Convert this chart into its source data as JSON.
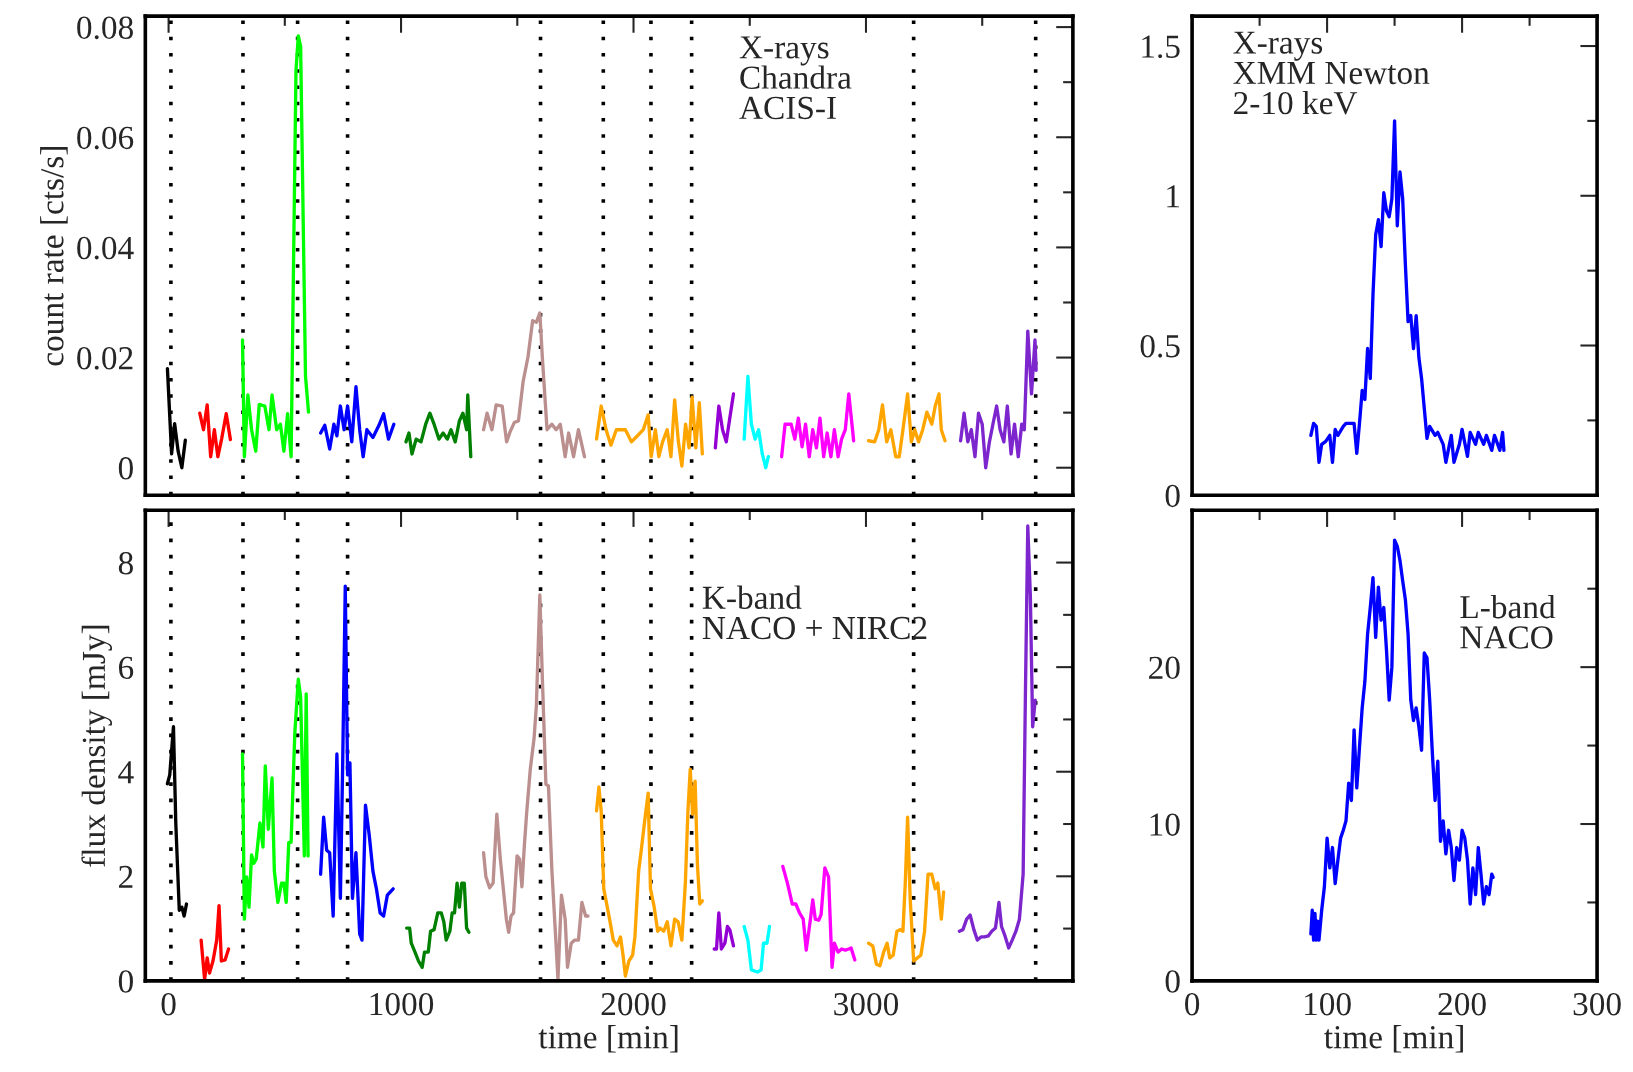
{
  "chart_data": [
    {
      "type": "line",
      "ylabel": "count rate [cts/s]",
      "xlim": [
        -100,
        3890
      ],
      "ylim": [
        -0.005,
        0.082
      ],
      "tick_labels": "y",
      "xticks": [
        0,
        {
          "value": 500,
          "label": null
        },
        1000,
        {
          "value": 1500,
          "label": null
        },
        2000,
        {
          "value": 2500,
          "label": null
        },
        3000,
        {
          "value": 3500,
          "label": null
        }
      ],
      "yticks": [
        0,
        {
          "value": 0.01,
          "label": null
        },
        0.02,
        {
          "value": 0.03,
          "label": null
        },
        0.04,
        {
          "value": 0.05,
          "label": null
        },
        0.06,
        {
          "value": 0.07,
          "label": null
        },
        0.08
      ],
      "annotations": [
        "X-rays\nChandra\nACIS-I"
      ],
      "ref_lines": [
        {
          "axis": "x",
          "value": 10,
          "color": "#000000",
          "line_style": "dotted"
        },
        {
          "axis": "x",
          "value": 320,
          "color": "#000000",
          "line_style": "dotted"
        },
        {
          "axis": "x",
          "value": 555,
          "color": "#000000",
          "line_style": "dotted"
        },
        {
          "axis": "x",
          "value": 770,
          "color": "#000000",
          "line_style": "dotted"
        },
        {
          "axis": "x",
          "value": 1600,
          "color": "#000000",
          "line_style": "dotted"
        },
        {
          "axis": "x",
          "value": 1870,
          "color": "#000000",
          "line_style": "dotted"
        },
        {
          "axis": "x",
          "value": 2075,
          "color": "#000000",
          "line_style": "dotted"
        },
        {
          "axis": "x",
          "value": 2250,
          "color": "#000000",
          "line_style": "dotted"
        },
        {
          "axis": "x",
          "value": 3205,
          "color": "#000000",
          "line_style": "dotted"
        },
        {
          "axis": "x",
          "value": 3730,
          "color": "#000000",
          "line_style": "dotted"
        }
      ],
      "series": [
        {
          "color": "#000000",
          "x": [
            -5,
            13,
            26,
            41,
            57,
            72
          ],
          "values": [
            0.018,
            0.0025,
            0.008,
            0.003,
            0,
            0.005
          ]
        },
        {
          "color": "#ff0000",
          "x": [
            134,
            150,
            166,
            181,
            197,
            212,
            228,
            248,
            266
          ],
          "values": [
            0.0099,
            0.0069,
            0.0114,
            0.002,
            0.0069,
            0.002,
            0.0052,
            0.0098,
            0.0051
          ]
        },
        {
          "color": "#00ff00",
          "x": [
            318,
            326,
            341,
            357,
            375,
            390,
            414,
            432,
            445,
            465,
            481,
            496,
            512,
            527,
            548,
            558,
            568,
            589,
            602
          ],
          "values": [
            0.0232,
            0.002,
            0.0132,
            0.0069,
            0.003,
            0.0115,
            0.0112,
            0.0069,
            0.0132,
            0.0069,
            0.0079,
            0.003,
            0.0098,
            0.002,
            0.0721,
            0.0784,
            0.0765,
            0.0166,
            0.0101
          ]
        },
        {
          "color": "#0000ff",
          "x": [
            654,
            672,
            693,
            711,
            724,
            739,
            755,
            770,
            788,
            806,
            822,
            837,
            853,
            879,
            905,
            925,
            946,
            969
          ],
          "values": [
            0.0063,
            0.0077,
            0.0034,
            0.0079,
            0.0058,
            0.0112,
            0.0069,
            0.0112,
            0.0047,
            0.0147,
            0.0069,
            0.002,
            0.0069,
            0.0055,
            0.0077,
            0.0098,
            0.0052,
            0.0079
          ]
        },
        {
          "color": "#008000",
          "x": [
            1021,
            1034,
            1047,
            1065,
            1086,
            1106,
            1124,
            1142,
            1163,
            1181,
            1199,
            1215,
            1233,
            1251,
            1266,
            1282,
            1287,
            1300
          ],
          "values": [
            0.0047,
            0.0063,
            0.0025,
            0.0052,
            0.0047,
            0.0079,
            0.0099,
            0.0079,
            0.0052,
            0.0063,
            0.0052,
            0.0069,
            0.0047,
            0.0085,
            0.0099,
            0.0069,
            0.0132,
            0.002
          ]
        },
        {
          "color": "#bc8f8f",
          "x": [
            1355,
            1370,
            1391,
            1409,
            1435,
            1454,
            1469,
            1487,
            1505,
            1525,
            1546,
            1566,
            1582,
            1597,
            1608,
            1628,
            1649,
            1667,
            1685,
            1706,
            1721,
            1742,
            1763,
            1789
          ],
          "values": [
            0.0069,
            0.0099,
            0.0069,
            0.0114,
            0.0112,
            0.0047,
            0.0065,
            0.0082,
            0.0085,
            0.0156,
            0.0201,
            0.0267,
            0.0264,
            0.0281,
            0.0199,
            0.0069,
            0.0079,
            0.0069,
            0.0079,
            0.002,
            0.0063,
            0.002,
            0.0069,
            0.002
          ]
        },
        {
          "color": "#ffa500",
          "x": [
            1841,
            1861,
            1882,
            1903,
            1926,
            1965,
            1991,
            2017,
            2042,
            2063,
            2076,
            2094,
            2109,
            2125,
            2145,
            2161,
            2177,
            2193,
            2208,
            2224,
            2239,
            2252,
            2268,
            2283,
            2296
          ],
          "values": [
            0.0052,
            0.0112,
            0.0069,
            0.0041,
            0.0069,
            0.0069,
            0.0047,
            0.0058,
            0.0069,
            0.0096,
            0.002,
            0.0069,
            0.002,
            0.0047,
            0.0069,
            0.002,
            0.0123,
            0.0047,
            0.0003,
            0.0079,
            0.0036,
            0.0128,
            0.0036,
            0.0118,
            0.0025
          ]
        },
        {
          "color": "#9400d3",
          "x": [
            2352,
            2367,
            2383,
            2399,
            2414,
            2430
          ],
          "values": [
            0.0036,
            0.0112,
            0.0069,
            0.0047,
            0.009,
            0.0134
          ]
        },
        {
          "color": "#00ffff",
          "x": [
            2476,
            2492,
            2507,
            2523,
            2538,
            2554,
            2569,
            2580
          ],
          "values": [
            0.0052,
            0.0166,
            0.0079,
            0.0052,
            0.0069,
            0.0025,
            0,
            0.002
          ]
        },
        {
          "color": "#ff00ff",
          "x": [
            2637,
            2652,
            2678,
            2694,
            2709,
            2725,
            2740,
            2756,
            2771,
            2787,
            2802,
            2818,
            2833,
            2849,
            2864,
            2880,
            2895,
            2911,
            2926,
            2947
          ],
          "values": [
            0.002,
            0.0079,
            0.0079,
            0.0052,
            0.009,
            0.0038,
            0.0079,
            0.002,
            0.0069,
            0.0036,
            0.009,
            0.002,
            0.0063,
            0.002,
            0.0069,
            0.002,
            0.0052,
            0.0069,
            0.0134,
            0.0049
          ]
        },
        {
          "color": "#ffa500",
          "x": [
            3011,
            3037,
            3055,
            3071,
            3089,
            3107,
            3128,
            3143,
            3159,
            3179,
            3195,
            3210,
            3226,
            3244,
            3262,
            3283,
            3298,
            3314,
            3324,
            3340
          ],
          "values": [
            0.0049,
            0.0047,
            0.0069,
            0.0114,
            0.0047,
            0.0069,
            0.002,
            0.002,
            0.0069,
            0.0134,
            0.0047,
            0.0069,
            0.0047,
            0.0069,
            0.0101,
            0.0079,
            0.0112,
            0.0134,
            0.0069,
            0.0049
          ]
        },
        {
          "color": "#7d26cd",
          "x": [
            3407,
            3422,
            3438,
            3453,
            3469,
            3484,
            3500,
            3515,
            3531,
            3546,
            3562,
            3577,
            3593,
            3608,
            3624,
            3639,
            3655,
            3670,
            3681,
            3696,
            3712,
            3727,
            3732
          ],
          "values": [
            0.0049,
            0.0099,
            0.0047,
            0.0069,
            0.002,
            0.0099,
            0.0079,
            0,
            0.0047,
            0.0079,
            0.0112,
            0.0069,
            0.0047,
            0.0112,
            0.0025,
            0.0079,
            0.002,
            0.0079,
            0.0069,
            0.0248,
            0.0134,
            0.0232,
            0.0177
          ]
        }
      ]
    },
    {
      "type": "line",
      "xlim": [
        0,
        300
      ],
      "ylim": [
        0,
        1.6
      ],
      "tick_labels": "y",
      "xticks": [
        0,
        {
          "value": 50,
          "label": null
        },
        100,
        {
          "value": 150,
          "label": null
        },
        200,
        {
          "value": 250,
          "label": null
        },
        300
      ],
      "yticks": [
        0,
        {
          "value": 0.25,
          "label": null
        },
        0.5,
        {
          "value": 0.75,
          "label": null
        },
        1,
        {
          "value": 1.25,
          "label": null
        },
        1.5
      ],
      "annotations": [
        "X-rays\nXMM Newton\n2-10 keV"
      ],
      "series": [
        {
          "color": "#0000ff",
          "x": [
            88,
            90,
            92,
            94,
            96,
            99,
            102,
            104,
            106,
            108,
            112,
            114,
            116,
            120,
            122,
            124,
            126,
            128,
            130,
            132,
            134,
            136,
            138,
            140,
            142,
            144,
            146,
            148,
            150,
            152,
            154,
            156,
            158,
            160,
            162,
            164,
            166,
            168,
            170,
            172,
            174,
            176,
            180,
            182,
            186,
            188,
            192,
            194,
            198,
            200,
            204,
            206,
            210,
            212,
            216,
            218,
            222,
            224,
            228,
            230,
            231
          ],
          "values": [
            0.2,
            0.24,
            0.23,
            0.11,
            0.17,
            0.18,
            0.2,
            0.11,
            0.22,
            0.2,
            0.23,
            0.24,
            0.24,
            0.24,
            0.14,
            0.24,
            0.35,
            0.32,
            0.49,
            0.39,
            0.67,
            0.87,
            0.92,
            0.83,
            1.01,
            0.95,
            0.93,
            0.99,
            1.25,
            0.9,
            1.08,
            0.99,
            0.77,
            0.58,
            0.6,
            0.49,
            0.6,
            0.46,
            0.39,
            0.29,
            0.19,
            0.23,
            0.2,
            0.21,
            0.17,
            0.11,
            0.2,
            0.11,
            0.17,
            0.22,
            0.13,
            0.21,
            0.17,
            0.21,
            0.17,
            0.2,
            0.15,
            0.2,
            0.15,
            0.21,
            0.15
          ]
        }
      ]
    },
    {
      "type": "line",
      "xlabel": "time [min]",
      "ylabel": "flux density [mJy]",
      "xlim": [
        -100,
        3890
      ],
      "ylim": [
        0,
        9
      ],
      "xticks": [
        0,
        {
          "value": 500,
          "label": null
        },
        1000,
        {
          "value": 1500,
          "label": null
        },
        2000,
        {
          "value": 2500,
          "label": null
        },
        3000,
        {
          "value": 3500,
          "label": null
        }
      ],
      "yticks": [
        0,
        {
          "value": 1,
          "label": null
        },
        2,
        {
          "value": 3,
          "label": null
        },
        4,
        {
          "value": 5,
          "label": null
        },
        6,
        {
          "value": 7,
          "label": null
        },
        8
      ],
      "annotations": [
        "K-band\nNACO + NIRC2"
      ],
      "ref_lines": [
        {
          "axis": "x",
          "value": 10,
          "color": "#000000",
          "line_style": "dotted"
        },
        {
          "axis": "x",
          "value": 320,
          "color": "#000000",
          "line_style": "dotted"
        },
        {
          "axis": "x",
          "value": 555,
          "color": "#000000",
          "line_style": "dotted"
        },
        {
          "axis": "x",
          "value": 770,
          "color": "#000000",
          "line_style": "dotted"
        },
        {
          "axis": "x",
          "value": 1600,
          "color": "#000000",
          "line_style": "dotted"
        },
        {
          "axis": "x",
          "value": 1870,
          "color": "#000000",
          "line_style": "dotted"
        },
        {
          "axis": "x",
          "value": 2075,
          "color": "#000000",
          "line_style": "dotted"
        },
        {
          "axis": "x",
          "value": 2250,
          "color": "#000000",
          "line_style": "dotted"
        },
        {
          "axis": "x",
          "value": 3205,
          "color": "#000000",
          "line_style": "dotted"
        },
        {
          "axis": "x",
          "value": 3730,
          "color": "#000000",
          "line_style": "dotted"
        }
      ],
      "series": [
        {
          "color": "#000000",
          "x": [
            -5,
            5,
            21,
            31,
            46,
            57,
            67,
            77
          ],
          "values": [
            3.77,
            3.94,
            4.86,
            3.02,
            1.35,
            1.41,
            1.24,
            1.47
          ]
        },
        {
          "color": "#ff0000",
          "x": [
            140,
            155,
            166,
            176,
            191,
            207,
            217,
            227,
            243,
            258
          ],
          "values": [
            0.78,
            0.03,
            0.44,
            0.15,
            0.38,
            0.78,
            1.44,
            0.38,
            0.4,
            0.61
          ]
        },
        {
          "color": "#00ff00",
          "x": [
            318,
            326,
            336,
            346,
            357,
            367,
            377,
            393,
            406,
            416,
            429,
            445,
            455,
            470,
            486,
            496,
            506,
            517,
            527,
            543,
            558,
            568,
            584,
            592,
            600
          ],
          "values": [
            4.34,
            1.18,
            1.99,
            1.41,
            2.41,
            2.25,
            2.33,
            3.02,
            2.56,
            4.11,
            2.9,
            3.88,
            2.1,
            1.5,
            1.87,
            1.87,
            1.5,
            2.65,
            2.65,
            4.74,
            5.77,
            5.43,
            2.39,
            5.49,
            2.39
          ]
        },
        {
          "color": "#0000ff",
          "x": [
            654,
            667,
            680,
            693,
            708,
            724,
            739,
            749,
            760,
            770,
            780,
            791,
            806,
            822,
            832,
            847,
            863,
            879,
            894,
            910,
            925,
            941,
            966
          ],
          "values": [
            2.04,
            3.13,
            2.5,
            2.45,
            1.24,
            4.34,
            1.58,
            4.17,
            7.55,
            3.94,
            4.17,
            1.58,
            2.45,
            0.9,
            0.78,
            3.36,
            2.79,
            2.1,
            1.76,
            1.3,
            1.24,
            1.64,
            1.76
          ]
        },
        {
          "color": "#008000",
          "x": [
            1024,
            1037,
            1044,
            1060,
            1075,
            1091,
            1101,
            1117,
            1127,
            1142,
            1158,
            1173,
            1184,
            1194,
            1210,
            1220,
            1230,
            1241,
            1251,
            1261,
            1272,
            1282,
            1292
          ],
          "values": [
            1.01,
            1.01,
            0.72,
            0.55,
            0.38,
            0.26,
            0.55,
            0.55,
            0.95,
            0.98,
            1.3,
            1.3,
            1.13,
            0.78,
            0.95,
            1.3,
            1.3,
            1.87,
            1.41,
            1.87,
            1.87,
            1.01,
            0.93
          ]
        },
        {
          "color": "#bc8f8f",
          "x": [
            1355,
            1365,
            1381,
            1396,
            1412,
            1427,
            1453,
            1463,
            1473,
            1484,
            1499,
            1510,
            1520,
            1530,
            1541,
            1556,
            1572,
            1582,
            1597,
            1608,
            1623,
            1634,
            1649,
            1665,
            1675,
            1690,
            1706,
            1716,
            1732,
            1747,
            1763,
            1778,
            1794,
            1804
          ],
          "values": [
            2.45,
            1.99,
            1.78,
            1.87,
            3.19,
            2.33,
            1.18,
            0.93,
            1.24,
            1.3,
            2.39,
            2.33,
            1.8,
            2.56,
            3.25,
            4.05,
            4.63,
            5.26,
            7.38,
            5.77,
            3.76,
            3.73,
            2.1,
            0.84,
            0.03,
            1.64,
            1.18,
            0.26,
            0.72,
            0.78,
            0.78,
            1.5,
            1.24,
            1.24
          ]
        },
        {
          "color": "#ffa500",
          "x": [
            1841,
            1851,
            1861,
            1872,
            1882,
            1897,
            1913,
            1929,
            1944,
            1955,
            1965,
            1980,
            1996,
            2006,
            2022,
            2032,
            2047,
            2063,
            2073,
            2089,
            2104,
            2114,
            2130,
            2145,
            2161,
            2177,
            2192,
            2208,
            2223,
            2234,
            2244,
            2254,
            2265,
            2275,
            2285,
            2296
          ],
          "values": [
            3.25,
            3.71,
            3.25,
            1.76,
            1.53,
            1.18,
            0.78,
            0.67,
            0.84,
            0.49,
            0.09,
            0.38,
            0.49,
            0.84,
            2.1,
            2.45,
            3.02,
            3.59,
            1.76,
            1.41,
            0.95,
            1.01,
            0.95,
            1.13,
            0.67,
            1.18,
            1.13,
            0.78,
            1.87,
            3.25,
            4.05,
            3.19,
            3.82,
            2.22,
            1.47,
            1.53
          ]
        },
        {
          "color": "#9400d3",
          "x": [
            2347,
            2357,
            2367,
            2378,
            2393,
            2404,
            2414,
            2430
          ],
          "values": [
            0.61,
            0.61,
            1.3,
            0.61,
            0.72,
            1.04,
            0.98,
            0.67
          ]
        },
        {
          "color": "#00ffff",
          "x": [
            2476,
            2492,
            2507,
            2533,
            2549,
            2559,
            2574,
            2585
          ],
          "values": [
            1.04,
            0.78,
            0.21,
            0.17,
            0.21,
            0.72,
            0.72,
            1.04
          ]
        },
        {
          "color": "#ff00ff",
          "x": [
            2642,
            2662,
            2683,
            2698,
            2714,
            2730,
            2743,
            2761,
            2771,
            2782,
            2797,
            2807,
            2823,
            2839,
            2854,
            2864,
            2880,
            2895,
            2911,
            2926,
            2936,
            2952
          ],
          "values": [
            2.19,
            1.87,
            1.47,
            1.47,
            1.3,
            1.18,
            0.59,
            1.18,
            1.55,
            1.18,
            1.16,
            1.27,
            2.16,
            1.99,
            0.26,
            0.72,
            0.55,
            0.61,
            0.59,
            0.61,
            0.63,
            0.4
          ]
        },
        {
          "color": "#ffa500",
          "x": [
            3011,
            3029,
            3045,
            3060,
            3076,
            3091,
            3102,
            3117,
            3133,
            3148,
            3159,
            3169,
            3179,
            3190,
            3205,
            3221,
            3236,
            3252,
            3267,
            3283,
            3298,
            3309,
            3324,
            3334
          ],
          "values": [
            0.72,
            0.67,
            0.32,
            0.29,
            0.55,
            0.72,
            0.44,
            0.49,
            0.95,
            0.98,
            0.95,
            1.87,
            3.13,
            1.58,
            0.38,
            0.44,
            0.49,
            0.95,
            2.04,
            2.04,
            1.76,
            1.87,
            1.18,
            1.7
          ]
        },
        {
          "color": "#7d26cd",
          "x": [
            3402,
            3417,
            3433,
            3448,
            3464,
            3479,
            3495,
            3510,
            3526,
            3541,
            3557,
            3572,
            3583,
            3598,
            3614,
            3629,
            3645,
            3660,
            3676,
            3686,
            3696,
            3707,
            3717,
            3728
          ],
          "values": [
            0.95,
            0.98,
            1.18,
            1.26,
            0.98,
            0.78,
            0.84,
            0.84,
            0.86,
            0.95,
            1.01,
            1.5,
            1.04,
            0.86,
            0.63,
            0.78,
            0.95,
            1.18,
            2.04,
            5.55,
            8.7,
            7.38,
            4.86,
            5.37
          ]
        }
      ]
    },
    {
      "type": "line",
      "xlabel": "time [min]",
      "xlim": [
        0,
        300
      ],
      "ylim": [
        0,
        30
      ],
      "xticks": [
        0,
        {
          "value": 50,
          "label": null
        },
        100,
        {
          "value": 150,
          "label": null
        },
        200,
        {
          "value": 250,
          "label": null
        },
        300
      ],
      "yticks": [
        0,
        {
          "value": 5,
          "label": null
        },
        10,
        {
          "value": 15,
          "label": null
        },
        20,
        {
          "value": 25,
          "label": null
        }
      ],
      "annotations": [
        "L-band\nNACO"
      ],
      "series": [
        {
          "color": "#0000ff",
          "x": [
            88,
            89,
            90,
            91,
            92,
            93,
            94,
            96,
            98,
            100,
            102,
            104,
            106,
            108,
            110,
            112,
            114,
            116,
            118,
            120,
            122,
            124,
            126,
            128,
            130,
            132,
            134,
            136,
            138,
            140,
            142,
            144,
            146,
            148,
            150,
            152,
            154,
            156,
            158,
            160,
            162,
            164,
            166,
            168,
            170,
            172,
            174,
            176,
            178,
            180,
            182,
            184,
            186,
            188,
            190,
            192,
            194,
            196,
            198,
            200,
            202,
            204,
            206,
            208,
            210,
            212,
            214,
            216,
            218,
            220,
            222,
            223
          ],
          "values": [
            3.0,
            4.5,
            2.6,
            4.3,
            2.6,
            3.8,
            2.6,
            4.5,
            6.0,
            9.1,
            7.2,
            8.5,
            6.2,
            7.7,
            9.1,
            9.6,
            10.2,
            12.6,
            11.5,
            16.0,
            12.3,
            14.9,
            17.4,
            19.1,
            22.1,
            23.8,
            25.7,
            21.9,
            25.1,
            23.0,
            23.8,
            21.1,
            17.9,
            20.0,
            28.1,
            27.7,
            26.8,
            25.5,
            24.3,
            22.1,
            17.9,
            16.6,
            17.4,
            16.2,
            14.7,
            20.9,
            20.6,
            17.9,
            14.5,
            11.5,
            14.0,
            8.9,
            10.2,
            8.1,
            9.6,
            8.5,
            6.4,
            8.5,
            7.7,
            9.6,
            9.1,
            7.7,
            4.9,
            7.2,
            5.5,
            8.5,
            6.8,
            4.9,
            6.0,
            5.5,
            6.8,
            6.6
          ]
        }
      ]
    }
  ]
}
